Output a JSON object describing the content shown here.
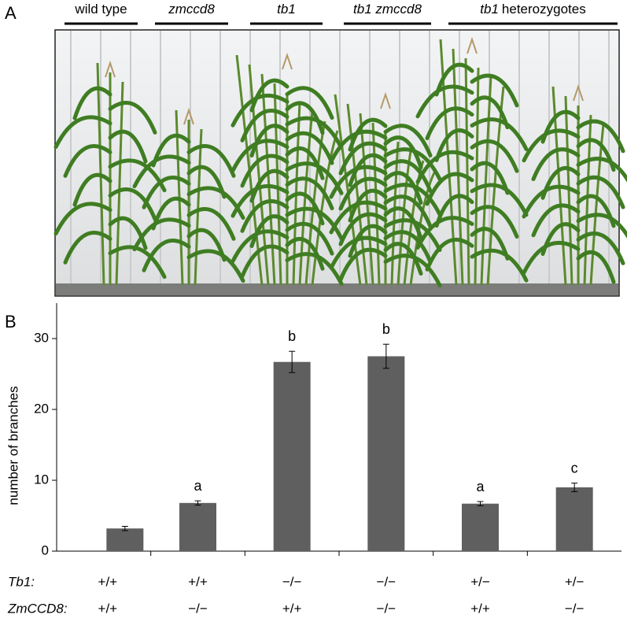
{
  "panel_a": {
    "label": "A",
    "groups": [
      {
        "plain": "wild type"
      },
      {
        "italic": "zmccd8"
      },
      {
        "italic": "tb1"
      },
      {
        "italic": "tb1 zmccd8"
      },
      {
        "italic": "tb1",
        "plain": "heterozygotes"
      }
    ]
  },
  "chart_data": {
    "type": "bar",
    "label": "B",
    "y_label": "number of branches",
    "values": [
      3.2,
      6.8,
      26.7,
      27.5,
      6.7,
      9.0
    ],
    "errors": [
      0.3,
      0.3,
      1.5,
      1.7,
      0.3,
      0.6
    ],
    "annotations": [
      null,
      "a",
      "b",
      "b",
      "a",
      "c"
    ],
    "color": "#5f5f5f",
    "ylim": [
      0,
      35
    ],
    "yticks": [
      0,
      10,
      20,
      30
    ],
    "genotype_rows": [
      {
        "label": "Tb1:",
        "values": [
          "+/+",
          "+/+",
          "−/−",
          "−/−",
          "+/−",
          "+/−"
        ]
      },
      {
        "label": "ZmCCD8:",
        "values": [
          "+/+",
          "−/−",
          "+/+",
          "−/−",
          "+/+",
          "−/−"
        ]
      }
    ]
  }
}
